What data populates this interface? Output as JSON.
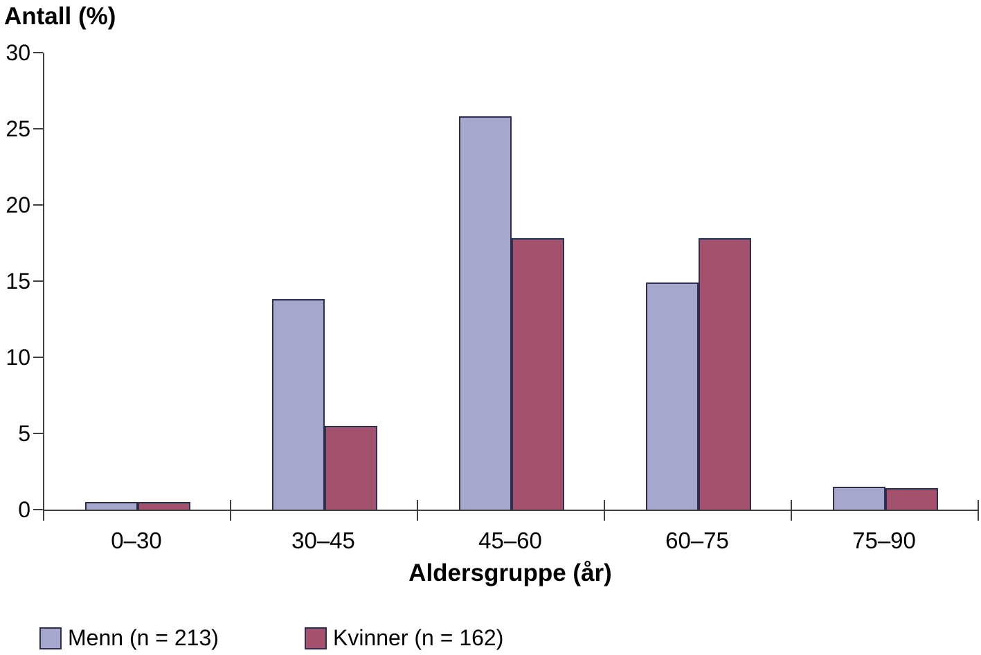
{
  "chart_data": {
    "type": "bar",
    "title": "Antall (%)",
    "ylabel": "Antall (%)",
    "xlabel": "Aldersgruppe (år)",
    "categories": [
      "0–30",
      "30–45",
      "45–60",
      "60–75",
      "75–90"
    ],
    "series": [
      {
        "name": "Menn (n = 213)",
        "color": "#A7A6CD",
        "values": [
          0.5,
          13.8,
          25.8,
          14.9,
          1.5
        ]
      },
      {
        "name": "Kvinner (n = 162)",
        "color": "#A4516E",
        "values": [
          0.5,
          5.5,
          17.8,
          17.8,
          1.4
        ]
      }
    ],
    "ylim": [
      0,
      30
    ],
    "yticks": [
      0,
      5,
      10,
      15,
      20,
      25,
      30
    ],
    "grid": false,
    "legend_position": "bottom-left",
    "colors": {
      "bar_border": "#2E2E4E",
      "axis": "#3F3F3F",
      "text": "#000000",
      "background": "#FFFFFF"
    }
  }
}
